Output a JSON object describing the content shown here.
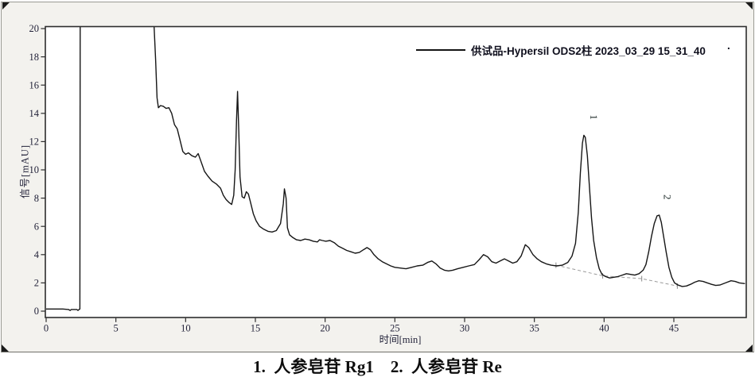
{
  "caption": {
    "text": "1.  人参皂苷 Rg1    2.  人参皂苷 Re"
  },
  "colors": {
    "canvas_bg": "#f3f2ee",
    "plot_bg": "#ffffff",
    "frame": "#2d2d2d",
    "trace": "#161616",
    "baseline_dash": "#9a9a9a",
    "tick_text": "#23233a",
    "legend_text": "#10101e",
    "caption_text": "#0d0d0d",
    "handle": "#1a1a1a"
  },
  "chart_data": {
    "type": "line",
    "title": "",
    "legend": {
      "label": "供试品-Hypersil ODS2柱 2023_03_29 15_31_40",
      "marker": "line",
      "trailing_dot": "."
    },
    "legend_position": "top-right-inside",
    "xlabel": "时间[min]",
    "ylabel": "信号[mAU]",
    "xlim": [
      0,
      50.2
    ],
    "ylim": [
      0,
      20
    ],
    "x_ticks": [
      0,
      5,
      10,
      15,
      20,
      25,
      30,
      35,
      40,
      45
    ],
    "y_ticks": [
      0,
      2,
      4,
      6,
      8,
      10,
      12,
      14,
      16,
      18,
      20
    ],
    "grid": false,
    "units": {
      "x": "min",
      "y": "mAU"
    },
    "off_scale_region": {
      "from_min": 2.44,
      "to_min": 7.72,
      "note": "solvent front clipped above 20 mAU"
    },
    "peaks": [
      {
        "label": "1",
        "time_min": 38.6,
        "height_mAU": 12.45,
        "compound": "人参皂苷 Rg1"
      },
      {
        "label": "2",
        "time_min": 43.9,
        "height_mAU": 6.8,
        "compound": "人参皂苷 Re"
      }
    ],
    "integration_baseline": [
      [
        36.55,
        3.25
      ],
      [
        39.9,
        2.5
      ],
      [
        42.7,
        2.3
      ],
      [
        45.25,
        1.78
      ]
    ],
    "series": [
      {
        "name": "供试品-Hypersil ODS2柱 2023_03_29 15_31_40",
        "points": [
          [
            0,
            0.15
          ],
          [
            0.6,
            0.15
          ],
          [
            1.2,
            0.15
          ],
          [
            1.6,
            0.12
          ],
          [
            1.72,
            0.05
          ],
          [
            1.8,
            0.12
          ],
          [
            2.2,
            0.12
          ],
          [
            2.28,
            0.05
          ],
          [
            2.36,
            0.12
          ],
          [
            2.42,
            0.15
          ],
          [
            2.44,
            20.5
          ],
          [
            3,
            20.5
          ],
          [
            4,
            20.5
          ],
          [
            5,
            20.5
          ],
          [
            6,
            20.5
          ],
          [
            7,
            20.5
          ],
          [
            7.72,
            20.5
          ],
          [
            7.85,
            17.8
          ],
          [
            7.95,
            15.1
          ],
          [
            8.05,
            14.4
          ],
          [
            8.2,
            14.55
          ],
          [
            8.4,
            14.5
          ],
          [
            8.6,
            14.35
          ],
          [
            8.8,
            14.4
          ],
          [
            9.0,
            14.0
          ],
          [
            9.2,
            13.2
          ],
          [
            9.4,
            12.9
          ],
          [
            9.6,
            12.1
          ],
          [
            9.8,
            11.3
          ],
          [
            10.0,
            11.1
          ],
          [
            10.2,
            11.2
          ],
          [
            10.45,
            11.0
          ],
          [
            10.7,
            10.9
          ],
          [
            10.9,
            11.15
          ],
          [
            11.1,
            10.6
          ],
          [
            11.35,
            9.9
          ],
          [
            11.6,
            9.55
          ],
          [
            11.9,
            9.2
          ],
          [
            12.2,
            9.0
          ],
          [
            12.5,
            8.7
          ],
          [
            12.7,
            8.2
          ],
          [
            12.9,
            7.9
          ],
          [
            13.1,
            7.7
          ],
          [
            13.3,
            7.55
          ],
          [
            13.45,
            8.2
          ],
          [
            13.55,
            10.0
          ],
          [
            13.65,
            13.5
          ],
          [
            13.72,
            15.55
          ],
          [
            13.8,
            13.0
          ],
          [
            13.9,
            9.5
          ],
          [
            14.05,
            8.1
          ],
          [
            14.2,
            8.0
          ],
          [
            14.35,
            8.45
          ],
          [
            14.5,
            8.3
          ],
          [
            14.65,
            7.7
          ],
          [
            14.85,
            6.9
          ],
          [
            15.05,
            6.4
          ],
          [
            15.3,
            6.0
          ],
          [
            15.6,
            5.8
          ],
          [
            15.9,
            5.65
          ],
          [
            16.2,
            5.6
          ],
          [
            16.5,
            5.7
          ],
          [
            16.8,
            6.2
          ],
          [
            17.0,
            7.6
          ],
          [
            17.08,
            8.65
          ],
          [
            17.2,
            8.0
          ],
          [
            17.3,
            5.9
          ],
          [
            17.45,
            5.4
          ],
          [
            17.7,
            5.2
          ],
          [
            17.95,
            5.05
          ],
          [
            18.25,
            5.0
          ],
          [
            18.55,
            5.1
          ],
          [
            18.85,
            5.05
          ],
          [
            19.15,
            4.95
          ],
          [
            19.45,
            4.9
          ],
          [
            19.6,
            5.05
          ],
          [
            19.8,
            5.0
          ],
          [
            20.05,
            4.95
          ],
          [
            20.35,
            5.0
          ],
          [
            20.65,
            4.85
          ],
          [
            20.95,
            4.6
          ],
          [
            21.25,
            4.45
          ],
          [
            21.55,
            4.3
          ],
          [
            21.85,
            4.2
          ],
          [
            22.15,
            4.1
          ],
          [
            22.45,
            4.15
          ],
          [
            22.75,
            4.35
          ],
          [
            23.0,
            4.5
          ],
          [
            23.25,
            4.35
          ],
          [
            23.5,
            4.0
          ],
          [
            23.8,
            3.7
          ],
          [
            24.1,
            3.5
          ],
          [
            24.4,
            3.35
          ],
          [
            24.7,
            3.2
          ],
          [
            25.0,
            3.1
          ],
          [
            25.4,
            3.05
          ],
          [
            25.8,
            3.0
          ],
          [
            26.2,
            3.1
          ],
          [
            26.6,
            3.2
          ],
          [
            27.0,
            3.25
          ],
          [
            27.35,
            3.45
          ],
          [
            27.65,
            3.55
          ],
          [
            27.95,
            3.35
          ],
          [
            28.25,
            3.05
          ],
          [
            28.55,
            2.9
          ],
          [
            28.85,
            2.85
          ],
          [
            29.15,
            2.9
          ],
          [
            29.5,
            3.0
          ],
          [
            29.9,
            3.1
          ],
          [
            30.3,
            3.2
          ],
          [
            30.7,
            3.3
          ],
          [
            31.05,
            3.65
          ],
          [
            31.35,
            4.0
          ],
          [
            31.65,
            3.85
          ],
          [
            31.95,
            3.5
          ],
          [
            32.25,
            3.4
          ],
          [
            32.55,
            3.55
          ],
          [
            32.85,
            3.7
          ],
          [
            33.15,
            3.55
          ],
          [
            33.45,
            3.4
          ],
          [
            33.75,
            3.5
          ],
          [
            34.05,
            3.9
          ],
          [
            34.35,
            4.7
          ],
          [
            34.6,
            4.5
          ],
          [
            34.9,
            4.0
          ],
          [
            35.2,
            3.7
          ],
          [
            35.5,
            3.5
          ],
          [
            35.85,
            3.35
          ],
          [
            36.2,
            3.25
          ],
          [
            36.6,
            3.2
          ],
          [
            37.0,
            3.25
          ],
          [
            37.4,
            3.45
          ],
          [
            37.7,
            3.9
          ],
          [
            37.95,
            4.8
          ],
          [
            38.15,
            7.0
          ],
          [
            38.3,
            9.8
          ],
          [
            38.45,
            11.9
          ],
          [
            38.55,
            12.45
          ],
          [
            38.65,
            12.3
          ],
          [
            38.8,
            11.0
          ],
          [
            38.95,
            8.8
          ],
          [
            39.1,
            6.6
          ],
          [
            39.25,
            5.0
          ],
          [
            39.45,
            3.8
          ],
          [
            39.65,
            3.0
          ],
          [
            39.85,
            2.6
          ],
          [
            40.1,
            2.45
          ],
          [
            40.4,
            2.35
          ],
          [
            40.7,
            2.4
          ],
          [
            41.0,
            2.45
          ],
          [
            41.3,
            2.55
          ],
          [
            41.6,
            2.65
          ],
          [
            41.9,
            2.6
          ],
          [
            42.2,
            2.55
          ],
          [
            42.5,
            2.65
          ],
          [
            42.8,
            2.9
          ],
          [
            43.0,
            3.3
          ],
          [
            43.2,
            4.2
          ],
          [
            43.4,
            5.3
          ],
          [
            43.6,
            6.2
          ],
          [
            43.8,
            6.75
          ],
          [
            43.95,
            6.8
          ],
          [
            44.1,
            6.3
          ],
          [
            44.25,
            5.4
          ],
          [
            44.45,
            4.2
          ],
          [
            44.65,
            3.1
          ],
          [
            44.85,
            2.4
          ],
          [
            45.05,
            2.0
          ],
          [
            45.3,
            1.85
          ],
          [
            45.6,
            1.75
          ],
          [
            45.9,
            1.78
          ],
          [
            46.2,
            1.9
          ],
          [
            46.5,
            2.05
          ],
          [
            46.8,
            2.15
          ],
          [
            47.1,
            2.1
          ],
          [
            47.4,
            2.0
          ],
          [
            47.7,
            1.9
          ],
          [
            48.0,
            1.82
          ],
          [
            48.3,
            1.85
          ],
          [
            48.7,
            2.0
          ],
          [
            49.1,
            2.15
          ],
          [
            49.4,
            2.1
          ],
          [
            49.7,
            2.0
          ],
          [
            50.1,
            1.95
          ]
        ]
      }
    ]
  }
}
